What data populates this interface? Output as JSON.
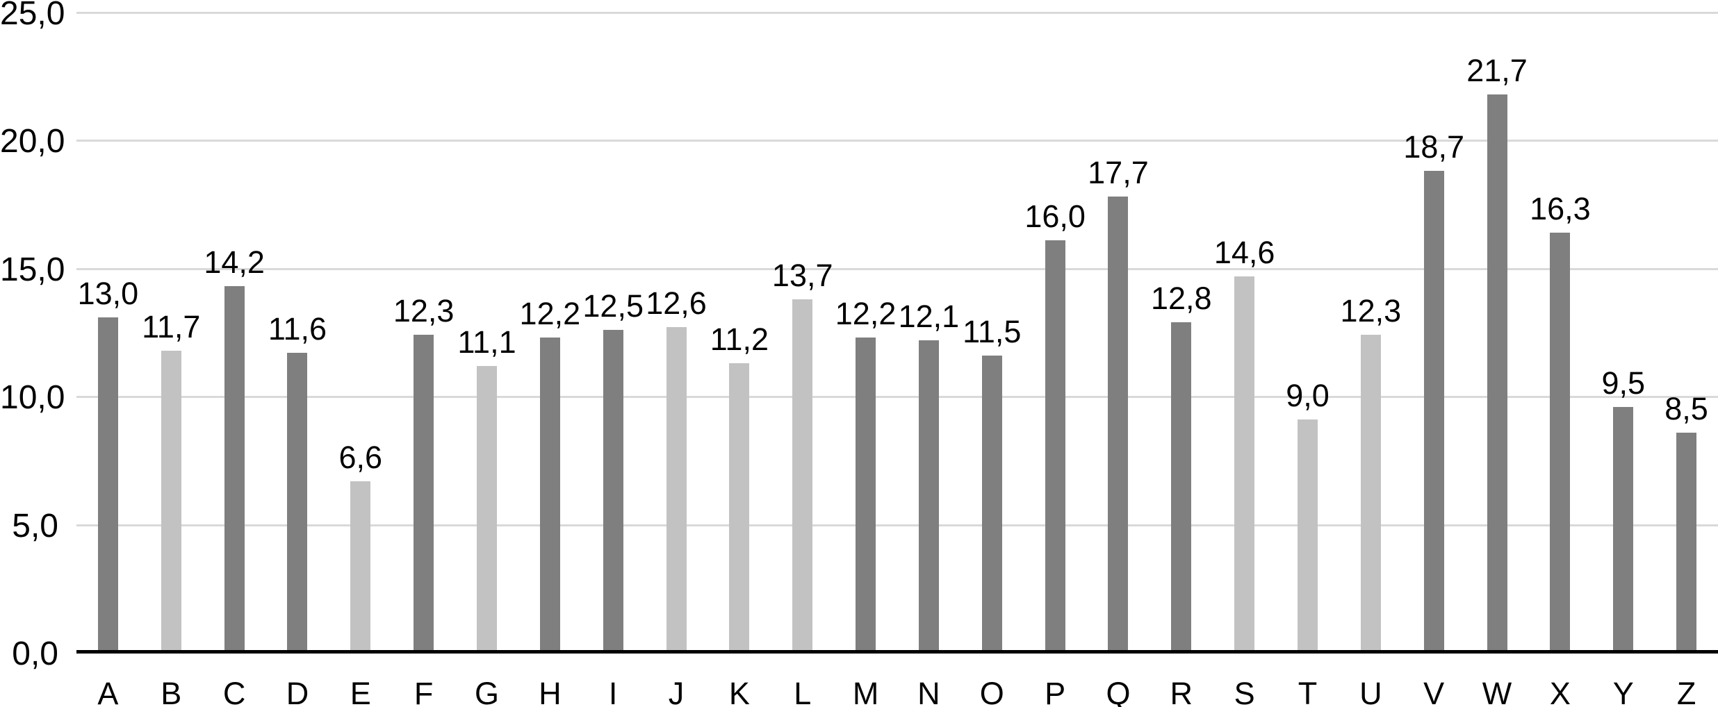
{
  "chart_data": {
    "type": "bar",
    "title": "",
    "xlabel": "",
    "ylabel": "",
    "categories": [
      "A",
      "B",
      "C",
      "D",
      "E",
      "F",
      "G",
      "H",
      "I",
      "J",
      "K",
      "L",
      "M",
      "N",
      "O",
      "P",
      "Q",
      "R",
      "S",
      "T",
      "U",
      "V",
      "W",
      "X",
      "Y",
      "Z"
    ],
    "values": [
      13.0,
      11.7,
      14.2,
      11.6,
      6.6,
      12.3,
      11.1,
      12.2,
      12.5,
      12.6,
      11.2,
      13.7,
      12.2,
      12.1,
      11.5,
      16.0,
      17.7,
      12.8,
      14.6,
      9.0,
      12.3,
      18.7,
      21.7,
      16.3,
      9.5,
      8.5
    ],
    "value_labels": [
      "13,0",
      "11,7",
      "14,2",
      "11,6",
      "6,6",
      "12,3",
      "11,1",
      "12,2",
      "12,5",
      "12,6",
      "11,2",
      "13,7",
      "12,2",
      "12,1",
      "11,5",
      "16,0",
      "17,7",
      "12,8",
      "14,6",
      "9,0",
      "12,3",
      "18,7",
      "21,7",
      "16,3",
      "9,5",
      "8,5"
    ],
    "bar_shades": [
      "dark",
      "light",
      "dark",
      "dark",
      "light",
      "dark",
      "light",
      "dark",
      "dark",
      "light",
      "light",
      "light",
      "dark",
      "dark",
      "dark",
      "dark",
      "dark",
      "dark",
      "light",
      "light",
      "light",
      "dark",
      "dark",
      "dark",
      "dark",
      "dark"
    ],
    "ylim": [
      0,
      25
    ],
    "ytick_step": 5,
    "ytick_values": [
      0,
      5,
      10,
      15,
      20,
      25
    ],
    "ytick_labels": [
      "0,0",
      "5,0",
      "10,0",
      "15,0",
      "20,0",
      "25,0"
    ],
    "grid": true,
    "legend_position": "none",
    "decimal_separator": ",",
    "colors": {
      "bar_dark": "#7f7f7f",
      "bar_light": "#c2c2c2",
      "gridline": "#d9d9d9",
      "axis": "#000000",
      "text": "#000000",
      "background": "#ffffff"
    }
  }
}
